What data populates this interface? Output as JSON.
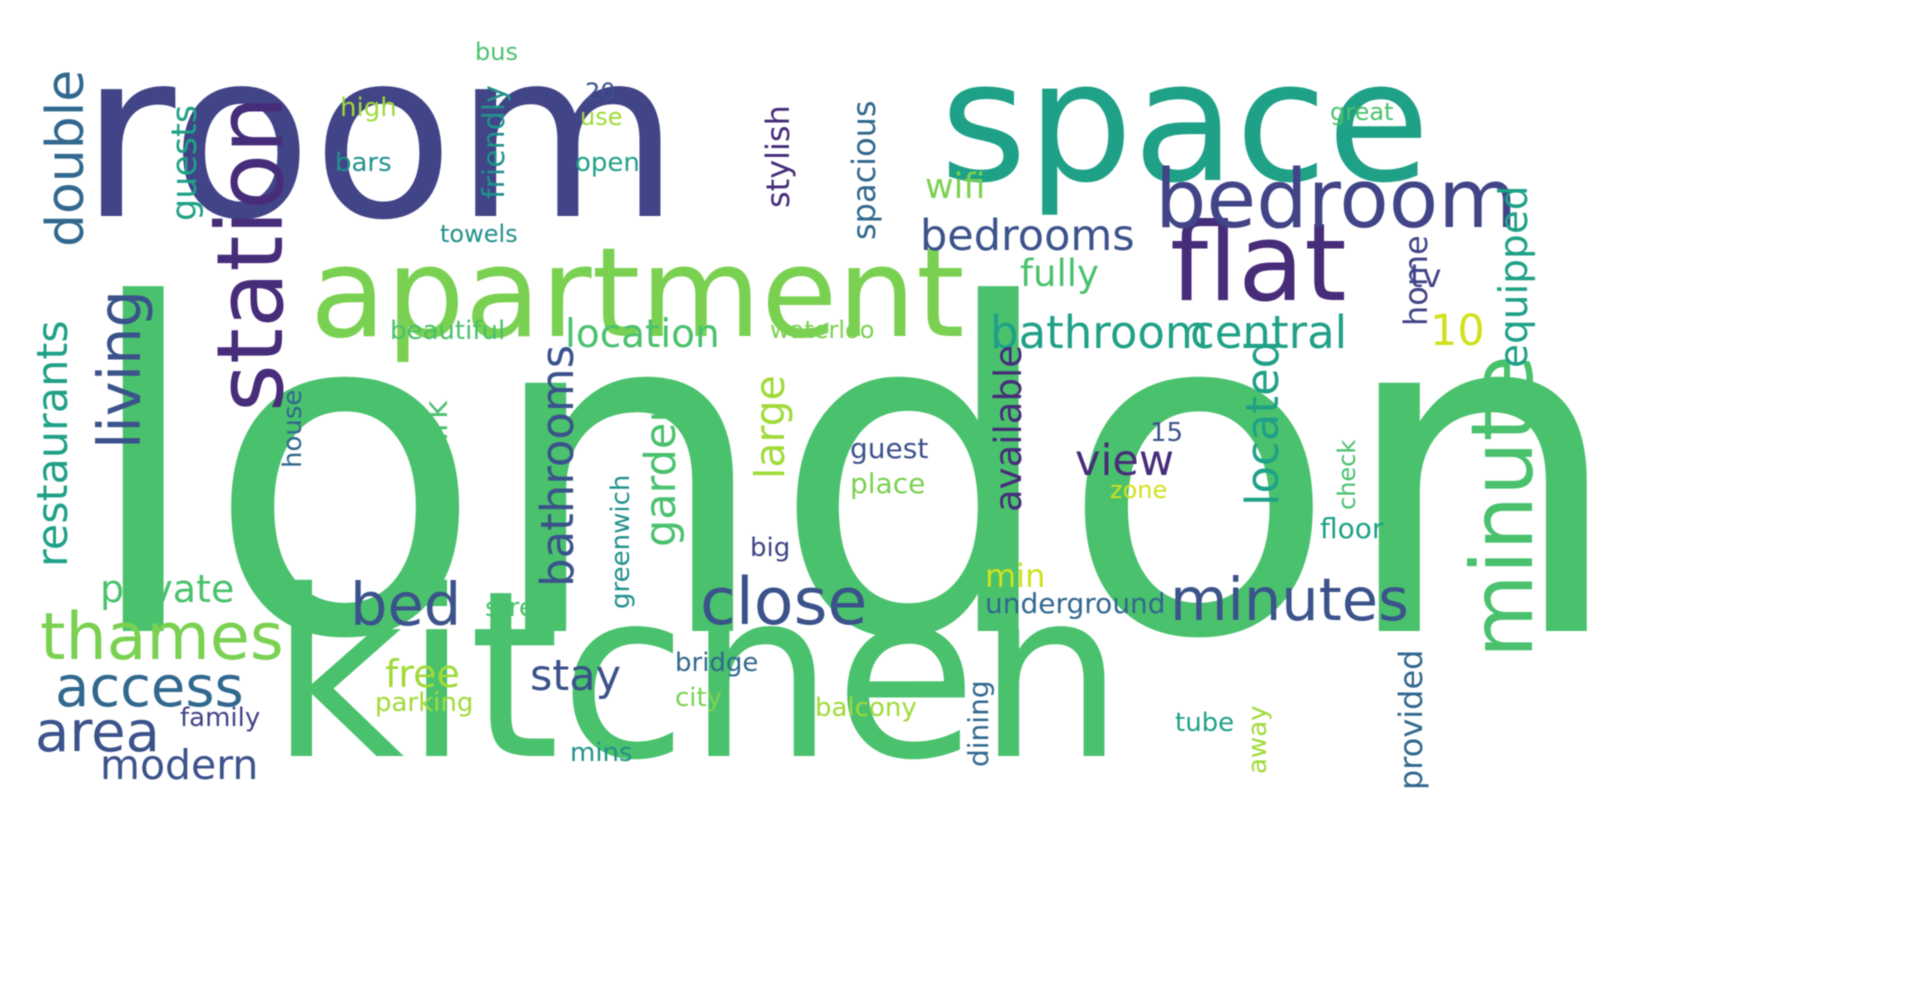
{
  "palette": {
    "background": "#ffffff",
    "dark_purple": "#472c7a",
    "indigo": "#414487",
    "blue": "#3b528b",
    "slate": "#31688e",
    "teal": "#21918c",
    "sea_green": "#1fa187",
    "green": "#4ac16d",
    "light_green": "#7ad151",
    "lime": "#a0da39",
    "yellow": "#d0e11c"
  },
  "words": [
    {
      "text": "london"
    },
    {
      "text": "room"
    },
    {
      "text": "kitchen"
    },
    {
      "text": "space"
    },
    {
      "text": "station"
    },
    {
      "text": "apartment"
    },
    {
      "text": "flat"
    },
    {
      "text": "bedroom"
    },
    {
      "text": "minute"
    },
    {
      "text": "living"
    },
    {
      "text": "double"
    },
    {
      "text": "bed"
    },
    {
      "text": "close"
    },
    {
      "text": "minutes"
    },
    {
      "text": "thames"
    },
    {
      "text": "access"
    },
    {
      "text": "area"
    },
    {
      "text": "bathroom"
    },
    {
      "text": "central"
    },
    {
      "text": "bedrooms"
    },
    {
      "text": "restaurants"
    },
    {
      "text": "bathrooms"
    },
    {
      "text": "located"
    },
    {
      "text": "location"
    },
    {
      "text": "private"
    },
    {
      "text": "modern"
    },
    {
      "text": "equipped"
    },
    {
      "text": "stay"
    },
    {
      "text": "garden"
    },
    {
      "text": "view"
    },
    {
      "text": "large"
    },
    {
      "text": "fully"
    },
    {
      "text": "wifi"
    },
    {
      "text": "available"
    },
    {
      "text": "10"
    },
    {
      "text": "tv"
    },
    {
      "text": "home"
    },
    {
      "text": "min"
    },
    {
      "text": "free"
    },
    {
      "text": "guests"
    },
    {
      "text": "park"
    },
    {
      "text": "friendly"
    },
    {
      "text": "stylish"
    },
    {
      "text": "spacious"
    },
    {
      "text": "high"
    },
    {
      "text": "bars"
    },
    {
      "text": "open"
    },
    {
      "text": "use"
    },
    {
      "text": "20"
    },
    {
      "text": "bus"
    },
    {
      "text": "great"
    },
    {
      "text": "towels"
    },
    {
      "text": "beautiful"
    },
    {
      "text": "waterloo"
    },
    {
      "text": "house"
    },
    {
      "text": "guest"
    },
    {
      "text": "place"
    },
    {
      "text": "15"
    },
    {
      "text": "zone"
    },
    {
      "text": "check"
    },
    {
      "text": "floor"
    },
    {
      "text": "greenwich"
    },
    {
      "text": "big"
    },
    {
      "text": "street"
    },
    {
      "text": "underground"
    },
    {
      "text": "bridge"
    },
    {
      "text": "city"
    },
    {
      "text": "parking"
    },
    {
      "text": "family"
    },
    {
      "text": "balcony"
    },
    {
      "text": "dining"
    },
    {
      "text": "tube"
    },
    {
      "text": "away"
    },
    {
      "text": "provided"
    },
    {
      "text": "mins"
    }
  ]
}
